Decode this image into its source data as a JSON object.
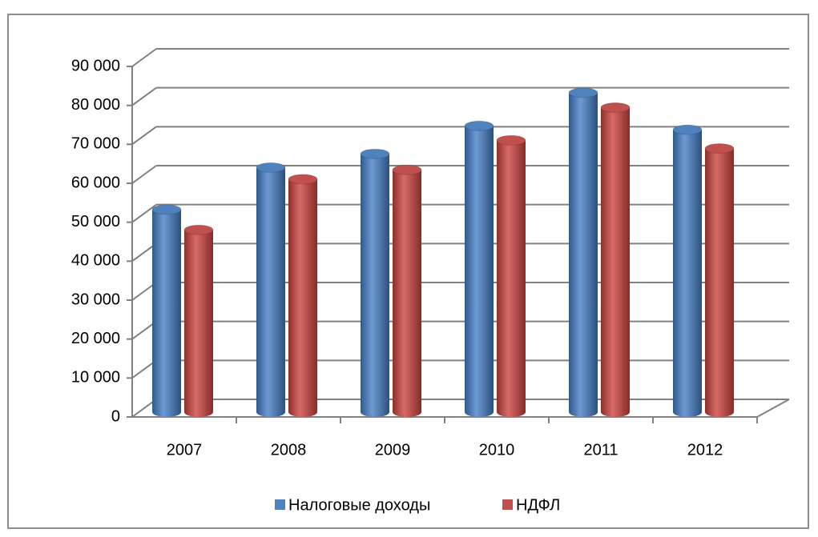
{
  "chart_data": {
    "type": "bar3d",
    "categories": [
      "2007",
      "2008",
      "2009",
      "2010",
      "2011",
      "2012"
    ],
    "series": [
      {
        "name": "Налоговые доходы",
        "color": "#4f81bd",
        "values": [
          52000,
          62800,
          66300,
          73500,
          82000,
          72500
        ]
      },
      {
        "name": "НДФЛ",
        "color": "#c0504d",
        "values": [
          46800,
          59800,
          62200,
          69800,
          78200,
          67700
        ]
      }
    ],
    "ylim": [
      0,
      90000
    ],
    "yticks": [
      {
        "value": 0,
        "label": "0"
      },
      {
        "value": 10000,
        "label": "10 000"
      },
      {
        "value": 20000,
        "label": "20 000"
      },
      {
        "value": 30000,
        "label": "30 000"
      },
      {
        "value": 40000,
        "label": "40 000"
      },
      {
        "value": 50000,
        "label": "50 000"
      },
      {
        "value": 60000,
        "label": "60 000"
      },
      {
        "value": 70000,
        "label": "70 000"
      },
      {
        "value": 80000,
        "label": "80 000"
      },
      {
        "value": 90000,
        "label": "90 000"
      }
    ],
    "grid": true,
    "legend": "bottom"
  }
}
